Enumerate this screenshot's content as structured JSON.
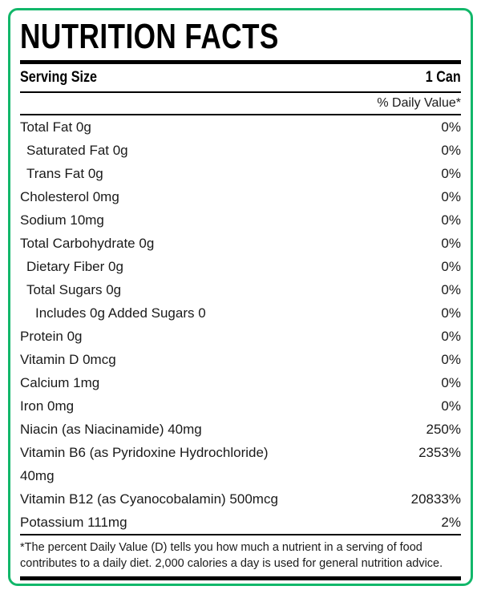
{
  "nutrition_label": {
    "title": "NUTRITION FACTS",
    "serving_size_label": "Serving Size",
    "serving_size_value": "1 Can",
    "daily_value_header": "% Daily Value*",
    "rows": [
      {
        "label": "Total Fat 0g",
        "value": "0%",
        "indent": 0
      },
      {
        "label": "Saturated Fat 0g",
        "value": "0%",
        "indent": 1
      },
      {
        "label": "Trans Fat 0g",
        "value": "0%",
        "indent": 1
      },
      {
        "label": "Cholesterol 0mg",
        "value": "0%",
        "indent": 0
      },
      {
        "label": "Sodium 10mg",
        "value": "0%",
        "indent": 0
      },
      {
        "label": "Total Carbohydrate 0g",
        "value": "0%",
        "indent": 0
      },
      {
        "label": "Dietary Fiber 0g",
        "value": "0%",
        "indent": 1
      },
      {
        "label": "Total Sugars 0g",
        "value": "0%",
        "indent": 1
      },
      {
        "label": "Includes 0g Added Sugars 0",
        "value": "0%",
        "indent": 2
      },
      {
        "label": "Protein 0g",
        "value": "0%",
        "indent": 0
      },
      {
        "label": "Vitamin D 0mcg",
        "value": "0%",
        "indent": 0
      },
      {
        "label": "Calcium 1mg",
        "value": "0%",
        "indent": 0
      },
      {
        "label": "Iron 0mg",
        "value": "0%",
        "indent": 0
      },
      {
        "label": "Niacin (as Niacinamide) 40mg",
        "value": "250%",
        "indent": 0
      },
      {
        "label": "Vitamin B6 (as Pyridoxine Hydrochloride)",
        "label_line2": "40mg",
        "value": "2353%",
        "indent": 0
      },
      {
        "label": "Vitamin B12 (as Cyanocobalamin) 500mcg",
        "value": "20833%",
        "indent": 0
      },
      {
        "label": "Potassium 111mg",
        "value": "2%",
        "indent": 0
      }
    ],
    "footnote": "*The percent Daily Value (D) tells you how much a nutrient in a serving of food contributes to a daily diet. 2,000 calories a day is used for general nutrition advice.",
    "colors": {
      "border_green": "#12b76a",
      "text": "#1a1a1a",
      "rule_black": "#000000"
    }
  }
}
